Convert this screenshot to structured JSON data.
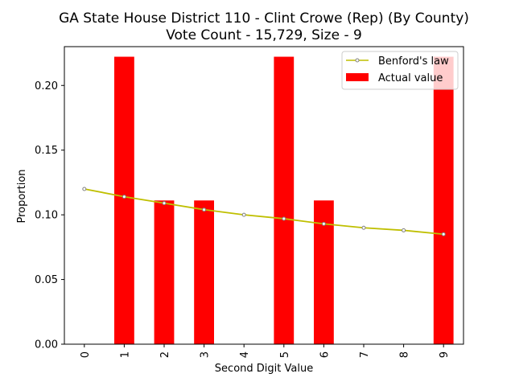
{
  "chart_data": {
    "type": "bar",
    "title": "GA State House District 110 - Clint Crowe (Rep) (By County)",
    "subtitle": "Vote Count - 15,729, Size - 9",
    "xlabel": "Second Digit Value",
    "ylabel": "Proportion",
    "categories": [
      "0",
      "1",
      "2",
      "3",
      "4",
      "5",
      "6",
      "7",
      "8",
      "9"
    ],
    "ylim": [
      0,
      0.23
    ],
    "yticks": [
      0.0,
      0.05,
      0.1,
      0.15,
      0.2
    ],
    "ytick_labels": [
      "0.00",
      "0.05",
      "0.10",
      "0.15",
      "0.20"
    ],
    "grid": false,
    "legend_position": "top-right",
    "series": [
      {
        "name": "Benford's law",
        "type": "line",
        "color": "#bfbf00",
        "marker_color": "#808080",
        "values": [
          0.12,
          0.114,
          0.109,
          0.104,
          0.1,
          0.097,
          0.093,
          0.09,
          0.088,
          0.085
        ]
      },
      {
        "name": "Actual value",
        "type": "bar",
        "color": "#ff0000",
        "values": [
          0.0,
          0.2222,
          0.1111,
          0.1111,
          0.0,
          0.2222,
          0.1111,
          0.0,
          0.0,
          0.2222
        ]
      }
    ]
  }
}
